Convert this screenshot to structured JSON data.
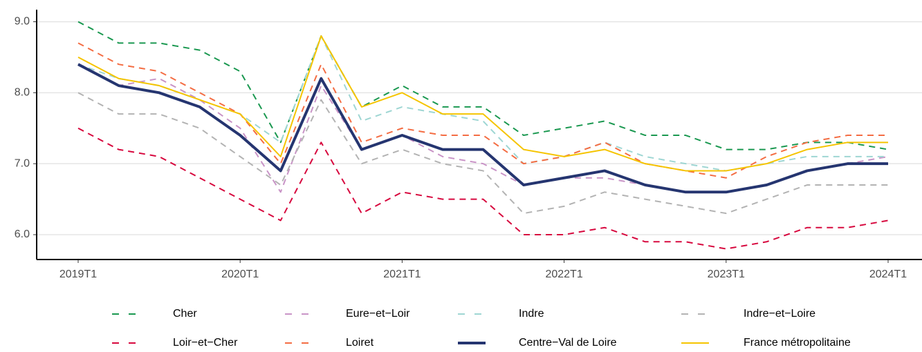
{
  "chart_data": {
    "type": "line",
    "categories": [
      "2019T1",
      null,
      null,
      null,
      "2020T1",
      null,
      null,
      null,
      "2021T1",
      null,
      null,
      null,
      "2022T1",
      null,
      null,
      null,
      "2023T1",
      null,
      null,
      null,
      "2024T1"
    ],
    "ylim": [
      5.65,
      9.17
    ],
    "yticks": [
      {
        "value": 6,
        "label": "6.0"
      },
      {
        "value": 7,
        "label": "7.0"
      },
      {
        "value": 8,
        "label": "8.0"
      },
      {
        "value": 9,
        "label": "9.0"
      }
    ],
    "grid": true,
    "legend": "bottom",
    "series": [
      {
        "name": "Cher",
        "color": "#1a9850",
        "style": "dashed",
        "values": [
          9.0,
          8.7,
          8.7,
          8.6,
          8.3,
          7.3,
          8.8,
          7.8,
          8.1,
          7.8,
          7.8,
          7.4,
          7.5,
          7.6,
          7.4,
          7.4,
          7.2,
          7.2,
          7.3,
          7.3,
          7.2
        ]
      },
      {
        "name": "Eure−et−Loir",
        "color": "#c994c7",
        "style": "dashed",
        "values": [
          8.4,
          8.1,
          8.2,
          7.9,
          7.5,
          6.6,
          8.1,
          7.2,
          7.4,
          7.1,
          7.0,
          6.7,
          6.8,
          6.8,
          6.7,
          6.6,
          6.6,
          6.7,
          6.9,
          7.0,
          7.1
        ]
      },
      {
        "name": "Indre",
        "color": "#9ed6d3",
        "style": "dashed",
        "values": [
          8.4,
          8.2,
          8.1,
          7.9,
          7.7,
          7.3,
          8.8,
          7.6,
          7.8,
          7.7,
          7.6,
          7.0,
          7.1,
          7.3,
          7.1,
          7.0,
          6.9,
          7.0,
          7.1,
          7.1,
          7.1
        ]
      },
      {
        "name": "Indre−et−Loire",
        "color": "#b3b3b3",
        "style": "dashed",
        "values": [
          8.0,
          7.7,
          7.7,
          7.5,
          7.1,
          6.7,
          7.9,
          7.0,
          7.2,
          7.0,
          6.9,
          6.3,
          6.4,
          6.6,
          6.5,
          6.4,
          6.3,
          6.5,
          6.7,
          6.7,
          6.7
        ]
      },
      {
        "name": "Loir−et−Cher",
        "color": "#d7083e",
        "style": "dashed",
        "values": [
          7.5,
          7.2,
          7.1,
          6.8,
          6.5,
          6.2,
          7.3,
          6.3,
          6.6,
          6.5,
          6.5,
          6.0,
          6.0,
          6.1,
          5.9,
          5.9,
          5.8,
          5.9,
          6.1,
          6.1,
          6.2
        ]
      },
      {
        "name": "Loiret",
        "color": "#f46d43",
        "style": "dashed",
        "values": [
          8.7,
          8.4,
          8.3,
          8.0,
          7.7,
          7.0,
          8.4,
          7.3,
          7.5,
          7.4,
          7.4,
          7.0,
          7.1,
          7.3,
          7.0,
          6.9,
          6.8,
          7.1,
          7.3,
          7.4,
          7.4
        ]
      },
      {
        "name": "Centre−Val de Loire",
        "color": "#253570",
        "style": "thick",
        "values": [
          8.4,
          8.1,
          8.0,
          7.8,
          7.4,
          6.9,
          8.2,
          7.2,
          7.4,
          7.2,
          7.2,
          6.7,
          6.8,
          6.9,
          6.7,
          6.6,
          6.6,
          6.7,
          6.9,
          7.0,
          7.0
        ]
      },
      {
        "name": "France métropolitaine",
        "color": "#f5c400",
        "style": "solid",
        "values": [
          8.5,
          8.2,
          8.1,
          7.9,
          7.7,
          7.1,
          8.8,
          7.8,
          8.0,
          7.7,
          7.7,
          7.2,
          7.1,
          7.2,
          7.0,
          6.9,
          6.9,
          7.0,
          7.2,
          7.3,
          7.3
        ]
      }
    ]
  }
}
